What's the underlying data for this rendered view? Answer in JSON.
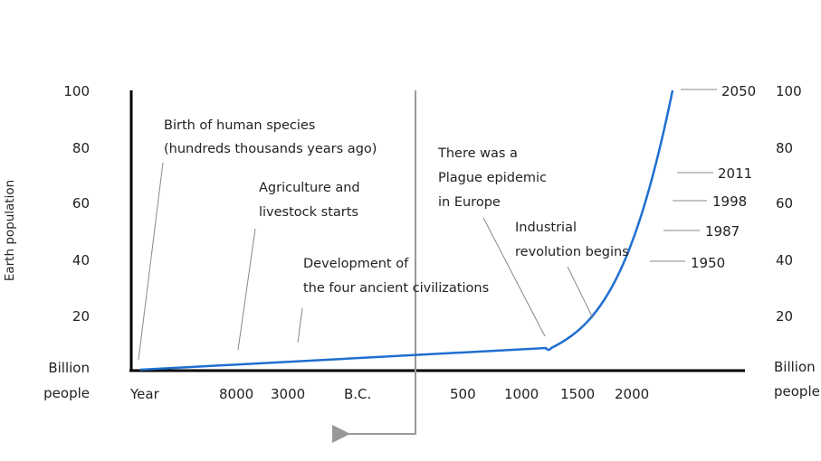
{
  "chart_data": {
    "type": "line",
    "title": "",
    "ylabel": "Earth population",
    "unit_left": [
      "Billion",
      "people"
    ],
    "unit_right": [
      "Billion",
      "people"
    ],
    "ylim": [
      0,
      100
    ],
    "y_ticks": [
      100,
      80,
      60,
      40,
      20
    ],
    "x_tick_labels": [
      "Year",
      "8000",
      "3000",
      "B.C.",
      "500",
      "1000",
      "1500",
      "2000"
    ],
    "axis_break_label": "B.C.",
    "grid": false,
    "colors": {
      "line": "#1f6fd0",
      "axis": "#000000",
      "divider": "#999999",
      "leader": "#888888"
    },
    "series": [
      {
        "values": [
          {
            "x": "Year",
            "y": 0.3
          },
          {
            "x": "B.C.",
            "y": 5.5
          },
          {
            "x": 1000,
            "y": 7.5
          },
          {
            "x": 1347,
            "y": 8
          },
          {
            "x": 1500,
            "y": 11
          },
          {
            "x": 1800,
            "y": 22
          },
          {
            "x": 1950,
            "y": 40
          },
          {
            "x": 1987,
            "y": 50
          },
          {
            "x": 1998,
            "y": 60
          },
          {
            "x": 2011,
            "y": 70
          },
          {
            "x": 2050,
            "y": 100
          }
        ]
      }
    ],
    "year_markers": [
      {
        "label": "2050",
        "y": 100
      },
      {
        "label": "2011",
        "y": 70
      },
      {
        "label": "1998",
        "y": 60
      },
      {
        "label": "1987",
        "y": 50
      },
      {
        "label": "1950",
        "y": 40
      }
    ],
    "annotations": [
      {
        "lines": [
          "Birth of human species",
          "(hundreds thousands years ago)"
        ]
      },
      {
        "lines": [
          "Agriculture and",
          "livestock starts"
        ]
      },
      {
        "lines": [
          "Development of",
          "the four ancient civilizations"
        ]
      },
      {
        "lines": [
          "There was a",
          "Plague epidemic",
          "in Europe"
        ]
      },
      {
        "lines": [
          "Industrial",
          "revolution begins"
        ]
      }
    ]
  }
}
